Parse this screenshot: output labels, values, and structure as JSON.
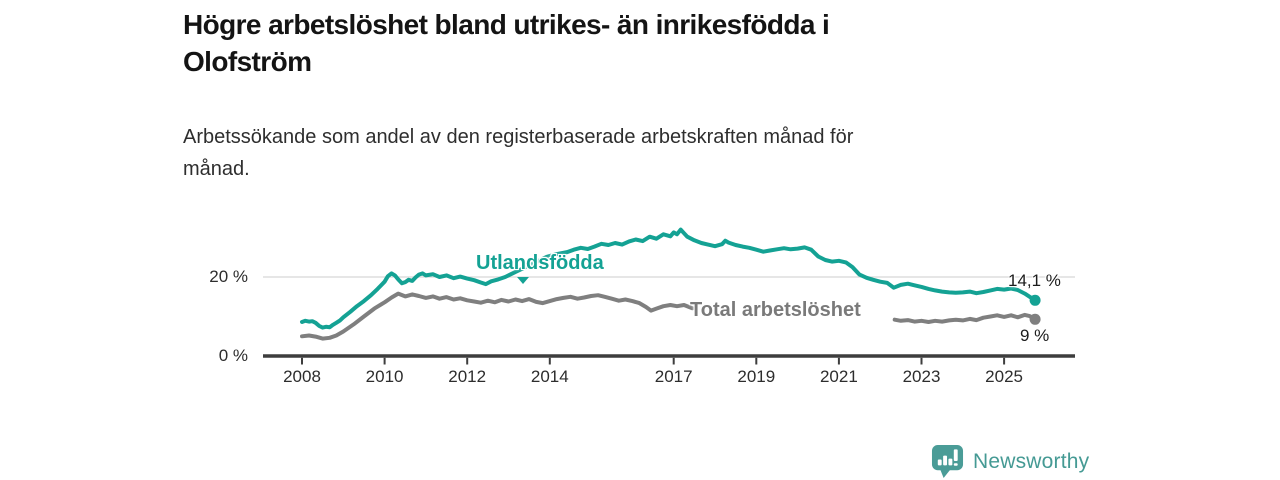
{
  "header": {
    "title": "Högre arbetslöshet bland utrikes- än inrikesfödda i Olofström",
    "title_lines": [
      "Högre arbetslöshet bland utrikes- än inrikesfödda i",
      "Olofström"
    ],
    "subtitle": "Arbetssökande som andel av den registerbaserade arbetskraften månad för månad.",
    "subtitle_lines": [
      "Arbetssökande som andel av den registerbaserade arbetskraften månad för",
      "månad."
    ]
  },
  "footer": {
    "brand": "Newsworthy",
    "logo_icon": "bar-chart-speech-bubble-icon",
    "brand_color": "#459a94"
  },
  "colors": {
    "utlandsfodda_line": "#14a294",
    "total_line": "#7f7f7f",
    "title_text": "#141414",
    "grid": "#d8d8d8",
    "axis": "#3d3d3d",
    "background": "#ffffff"
  },
  "chart_data": {
    "type": "line",
    "title": "Högre arbetslöshet bland utrikes- än inrikesfödda i Olofström",
    "subtitle": "Arbetssökande som andel av den registerbaserade arbetskraften månad för månad.",
    "unit": "percent",
    "style": {
      "grid_color": "#d8d8d8",
      "axis_color": "#3d3d3d"
    },
    "x_axis": {
      "ticks": [
        2008,
        2010,
        2012,
        2014,
        2017,
        2019,
        2021,
        2023,
        2025
      ],
      "range": [
        2007.06,
        2026.72
      ]
    },
    "y_axis": {
      "ticks": [
        {
          "value": 0,
          "label": "0 %"
        },
        {
          "value": 20,
          "label": "20 %"
        }
      ],
      "gridlines": [
        20
      ],
      "range": [
        0,
        35
      ]
    },
    "series": [
      {
        "name": "Utlandsfödda",
        "color": "#14a294",
        "end_label": "14,1 %",
        "end_value": 14.1,
        "segments": [
          [
            [
              2008.0,
              8.6
            ],
            [
              2008.08,
              8.9
            ],
            [
              2008.17,
              8.7
            ],
            [
              2008.25,
              8.8
            ],
            [
              2008.33,
              8.4
            ],
            [
              2008.42,
              7.6
            ],
            [
              2008.5,
              7.2
            ],
            [
              2008.58,
              7.4
            ],
            [
              2008.67,
              7.3
            ],
            [
              2008.75,
              7.9
            ],
            [
              2008.83,
              8.4
            ],
            [
              2008.92,
              9.0
            ],
            [
              2009.0,
              9.8
            ],
            [
              2009.17,
              11.2
            ],
            [
              2009.33,
              12.6
            ],
            [
              2009.5,
              13.9
            ],
            [
              2009.67,
              15.4
            ],
            [
              2009.83,
              17.0
            ],
            [
              2010.0,
              18.8
            ],
            [
              2010.08,
              20.2
            ],
            [
              2010.17,
              20.9
            ],
            [
              2010.25,
              20.4
            ],
            [
              2010.33,
              19.4
            ],
            [
              2010.42,
              18.4
            ],
            [
              2010.5,
              18.7
            ],
            [
              2010.58,
              19.3
            ],
            [
              2010.67,
              19.0
            ],
            [
              2010.75,
              19.9
            ],
            [
              2010.83,
              20.6
            ],
            [
              2010.92,
              20.9
            ],
            [
              2011.0,
              20.4
            ],
            [
              2011.17,
              20.7
            ],
            [
              2011.33,
              20.0
            ],
            [
              2011.5,
              20.4
            ],
            [
              2011.67,
              19.7
            ],
            [
              2011.83,
              20.1
            ],
            [
              2012.0,
              19.6
            ],
            [
              2012.17,
              19.2
            ],
            [
              2012.33,
              18.6
            ],
            [
              2012.45,
              18.2
            ],
            [
              2012.58,
              18.9
            ],
            [
              2012.75,
              19.4
            ],
            [
              2012.92,
              20.0
            ],
            [
              2013.17,
              21.3
            ],
            [
              2013.42,
              22.5
            ],
            [
              2013.67,
              23.8
            ],
            [
              2013.92,
              25.1
            ],
            [
              2014.17,
              25.8
            ],
            [
              2014.42,
              26.3
            ],
            [
              2014.58,
              26.9
            ],
            [
              2014.75,
              27.4
            ],
            [
              2014.92,
              27.1
            ],
            [
              2015.08,
              27.7
            ],
            [
              2015.25,
              28.4
            ],
            [
              2015.42,
              28.1
            ],
            [
              2015.58,
              28.6
            ],
            [
              2015.75,
              28.2
            ],
            [
              2015.92,
              29.0
            ],
            [
              2016.08,
              29.5
            ],
            [
              2016.25,
              29.1
            ],
            [
              2016.42,
              30.2
            ],
            [
              2016.58,
              29.7
            ],
            [
              2016.75,
              30.8
            ],
            [
              2016.92,
              30.3
            ],
            [
              2017.0,
              31.3
            ],
            [
              2017.08,
              30.8
            ],
            [
              2017.17,
              32.0
            ],
            [
              2017.25,
              31.1
            ],
            [
              2017.33,
              30.2
            ],
            [
              2017.5,
              29.3
            ],
            [
              2017.67,
              28.6
            ],
            [
              2017.83,
              28.2
            ],
            [
              2018.0,
              27.8
            ],
            [
              2018.17,
              28.3
            ],
            [
              2018.25,
              29.2
            ],
            [
              2018.33,
              28.7
            ],
            [
              2018.5,
              28.1
            ],
            [
              2018.67,
              27.7
            ],
            [
              2018.83,
              27.4
            ],
            [
              2019.0,
              26.9
            ],
            [
              2019.17,
              26.4
            ],
            [
              2019.33,
              26.7
            ],
            [
              2019.5,
              27.0
            ],
            [
              2019.67,
              27.3
            ],
            [
              2019.83,
              27.0
            ],
            [
              2020.0,
              27.2
            ],
            [
              2020.17,
              27.5
            ],
            [
              2020.33,
              26.9
            ],
            [
              2020.5,
              25.2
            ],
            [
              2020.67,
              24.3
            ],
            [
              2020.83,
              23.9
            ],
            [
              2021.0,
              24.1
            ],
            [
              2021.17,
              23.7
            ],
            [
              2021.33,
              22.5
            ],
            [
              2021.5,
              20.6
            ],
            [
              2021.67,
              19.8
            ],
            [
              2021.83,
              19.3
            ],
            [
              2022.0,
              18.8
            ],
            [
              2022.17,
              18.5
            ],
            [
              2022.33,
              17.3
            ],
            [
              2022.5,
              18.0
            ],
            [
              2022.67,
              18.3
            ],
            [
              2022.83,
              17.9
            ],
            [
              2023.0,
              17.5
            ],
            [
              2023.17,
              17.0
            ],
            [
              2023.33,
              16.6
            ],
            [
              2023.5,
              16.3
            ],
            [
              2023.67,
              16.1
            ],
            [
              2023.83,
              16.0
            ],
            [
              2024.0,
              16.1
            ],
            [
              2024.17,
              16.3
            ],
            [
              2024.33,
              15.9
            ],
            [
              2024.5,
              16.2
            ],
            [
              2024.67,
              16.6
            ],
            [
              2024.83,
              17.0
            ],
            [
              2025.0,
              16.8
            ],
            [
              2025.17,
              17.1
            ],
            [
              2025.33,
              16.7
            ],
            [
              2025.5,
              15.8
            ],
            [
              2025.62,
              15.0
            ],
            [
              2025.75,
              14.1
            ]
          ]
        ]
      },
      {
        "name": "Total arbetslöshet",
        "color": "#7f7f7f",
        "end_label": "9 %",
        "end_value": 9,
        "segments": [
          [
            [
              2008.0,
              5.0
            ],
            [
              2008.17,
              5.2
            ],
            [
              2008.33,
              4.9
            ],
            [
              2008.5,
              4.4
            ],
            [
              2008.67,
              4.6
            ],
            [
              2008.83,
              5.2
            ],
            [
              2009.0,
              6.2
            ],
            [
              2009.25,
              8.0
            ],
            [
              2009.5,
              10.0
            ],
            [
              2009.75,
              12.0
            ],
            [
              2010.0,
              13.6
            ],
            [
              2010.17,
              14.8
            ],
            [
              2010.33,
              15.8
            ],
            [
              2010.5,
              15.1
            ],
            [
              2010.67,
              15.6
            ],
            [
              2010.83,
              15.2
            ],
            [
              2011.0,
              14.7
            ],
            [
              2011.17,
              15.1
            ],
            [
              2011.33,
              14.5
            ],
            [
              2011.5,
              14.9
            ],
            [
              2011.67,
              14.3
            ],
            [
              2011.83,
              14.6
            ],
            [
              2012.0,
              14.1
            ],
            [
              2012.17,
              13.8
            ],
            [
              2012.33,
              13.5
            ],
            [
              2012.5,
              14.0
            ],
            [
              2012.67,
              13.6
            ],
            [
              2012.83,
              14.2
            ],
            [
              2013.0,
              13.8
            ],
            [
              2013.17,
              14.3
            ],
            [
              2013.33,
              13.9
            ],
            [
              2013.5,
              14.4
            ],
            [
              2013.67,
              13.7
            ],
            [
              2013.83,
              13.4
            ],
            [
              2014.0,
              13.9
            ],
            [
              2014.17,
              14.4
            ],
            [
              2014.33,
              14.7
            ],
            [
              2014.5,
              15.0
            ],
            [
              2014.67,
              14.5
            ],
            [
              2014.83,
              14.8
            ],
            [
              2015.0,
              15.2
            ],
            [
              2015.17,
              15.4
            ],
            [
              2015.33,
              15.0
            ],
            [
              2015.5,
              14.5
            ],
            [
              2015.67,
              14.0
            ],
            [
              2015.83,
              14.3
            ],
            [
              2016.0,
              13.9
            ],
            [
              2016.17,
              13.4
            ],
            [
              2016.33,
              12.4
            ],
            [
              2016.45,
              11.5
            ],
            [
              2016.58,
              12.0
            ],
            [
              2016.75,
              12.6
            ],
            [
              2016.92,
              12.9
            ],
            [
              2017.08,
              12.6
            ],
            [
              2017.25,
              12.9
            ],
            [
              2017.45,
              12.1
            ]
          ],
          [
            [
              2022.35,
              9.2
            ],
            [
              2022.5,
              8.9
            ],
            [
              2022.67,
              9.1
            ],
            [
              2022.83,
              8.7
            ],
            [
              2023.0,
              8.9
            ],
            [
              2023.17,
              8.6
            ],
            [
              2023.33,
              8.9
            ],
            [
              2023.5,
              8.7
            ],
            [
              2023.67,
              9.0
            ],
            [
              2023.83,
              9.2
            ],
            [
              2024.0,
              9.0
            ],
            [
              2024.17,
              9.4
            ],
            [
              2024.33,
              9.1
            ],
            [
              2024.5,
              9.7
            ],
            [
              2024.67,
              10.0
            ],
            [
              2024.83,
              10.3
            ],
            [
              2025.0,
              9.9
            ],
            [
              2025.17,
              10.3
            ],
            [
              2025.33,
              9.8
            ],
            [
              2025.5,
              10.4
            ],
            [
              2025.62,
              10.1
            ],
            [
              2025.75,
              9.3
            ]
          ]
        ]
      }
    ]
  }
}
